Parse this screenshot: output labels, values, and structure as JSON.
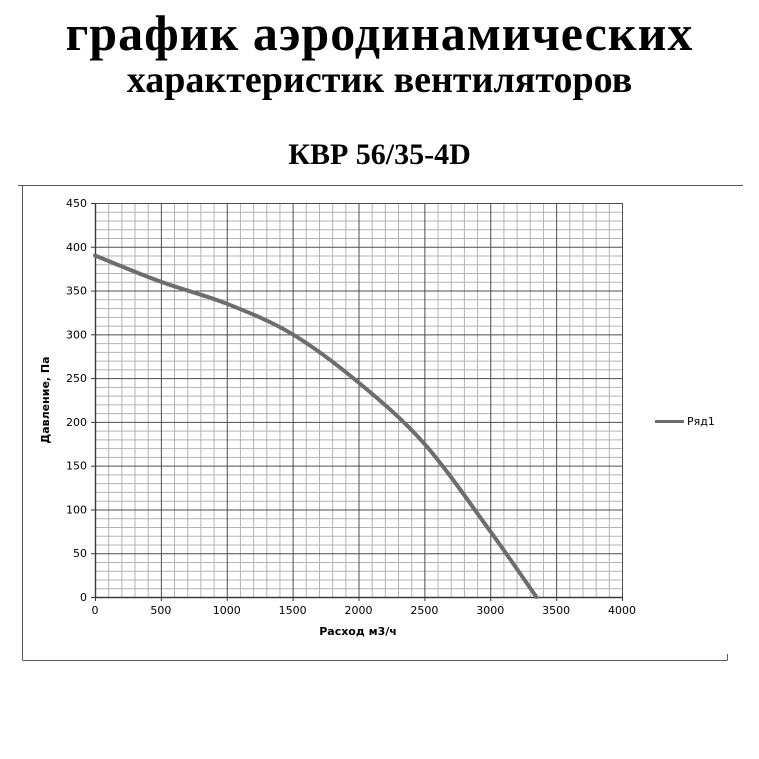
{
  "header": {
    "title_line1": "график аэродинамических",
    "title_line2": "характеристик вентиляторов",
    "model": "КВР 56/35-4D"
  },
  "chart_data": {
    "type": "line",
    "title": "",
    "xlabel": "Расход м3/ч",
    "ylabel": "Давление, Па",
    "xlim": [
      0,
      4000
    ],
    "ylim": [
      0,
      450
    ],
    "x_ticks": [
      0,
      500,
      1000,
      1500,
      2000,
      2500,
      3000,
      3500,
      4000
    ],
    "y_ticks": [
      0,
      50,
      100,
      150,
      200,
      250,
      300,
      350,
      400,
      450
    ],
    "x_minor_step": 100,
    "y_minor_step": 10,
    "grid": "major+minor",
    "legend_position": "right",
    "series": [
      {
        "name": "Ряд1",
        "color": "#6d6d6d",
        "points": [
          [
            0,
            390
          ],
          [
            500,
            360
          ],
          [
            1000,
            335
          ],
          [
            1500,
            300
          ],
          [
            2000,
            245
          ],
          [
            2500,
            175
          ],
          [
            3000,
            75
          ],
          [
            3350,
            0
          ]
        ]
      }
    ]
  },
  "colors": {
    "background": "#ffffff",
    "frame_border": "#595959",
    "grid_minor": "#b3b3b3",
    "grid_major": "#4d4d4d",
    "axis_line": "#3a3a3a",
    "series_line": "#6d6d6d",
    "text": "#000000"
  }
}
